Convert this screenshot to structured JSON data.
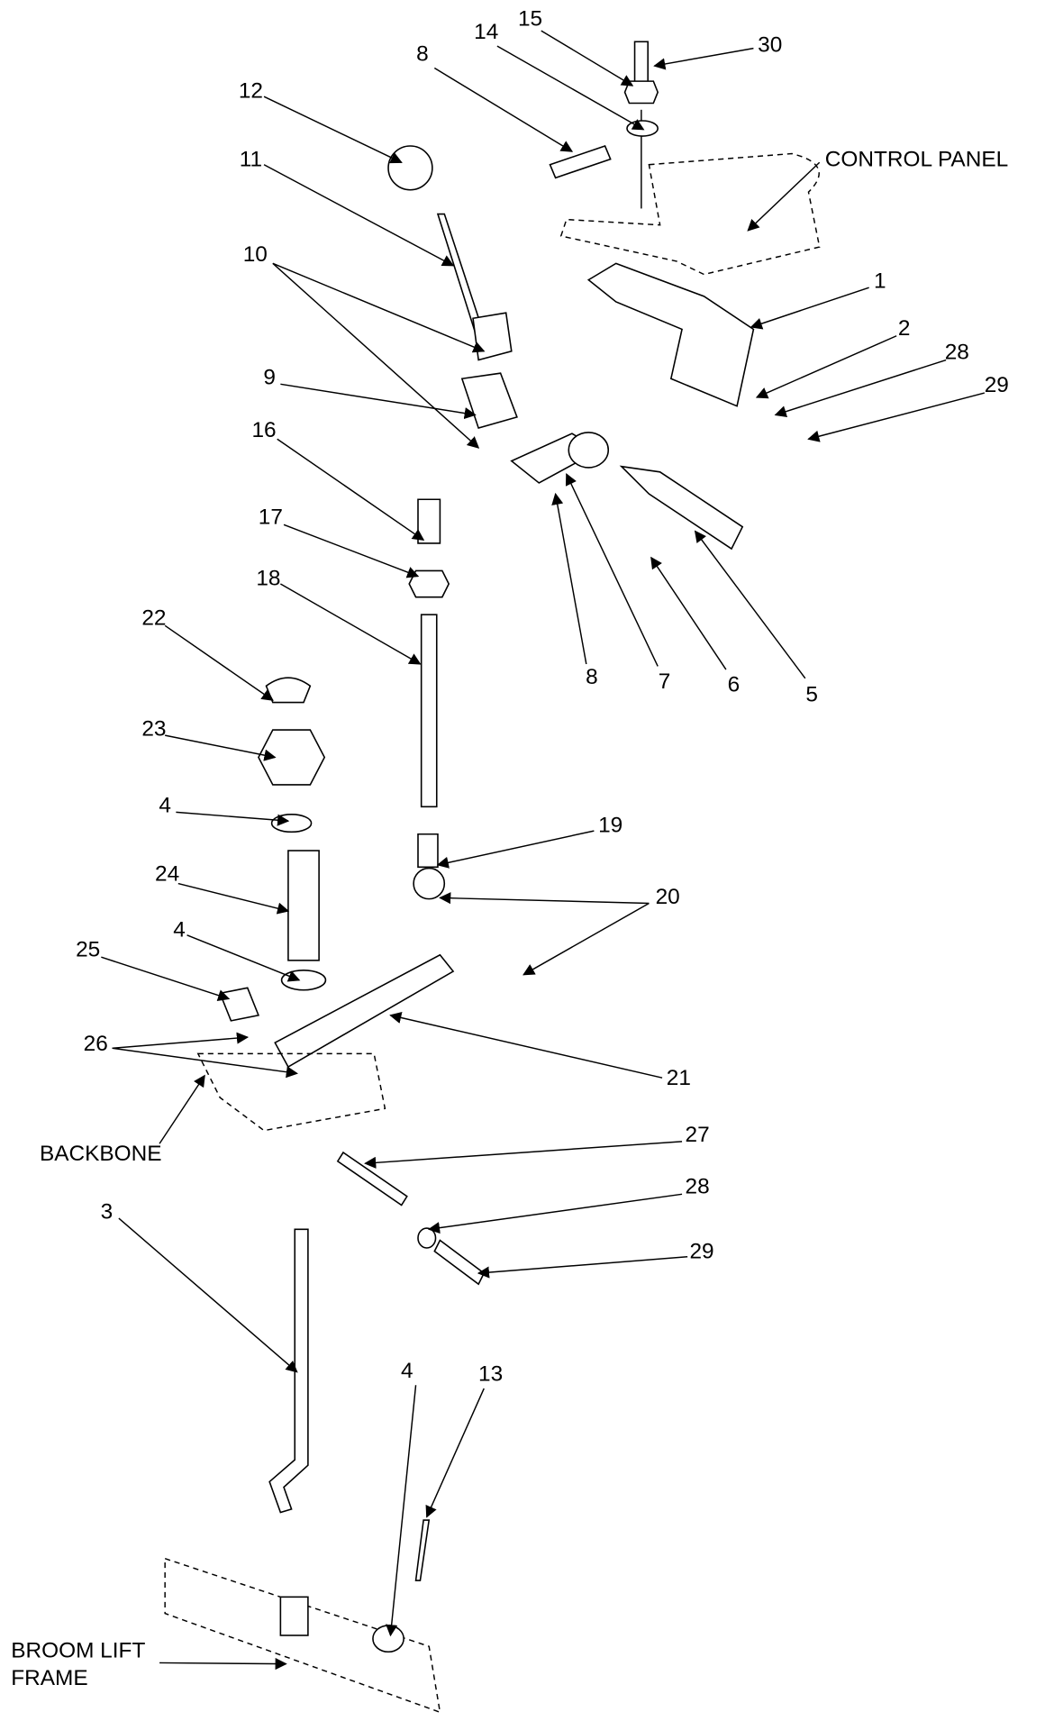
{
  "labels": [
    "15",
    "14",
    "30",
    "8",
    "12",
    "CONTROL PANEL",
    "11",
    "10",
    "1",
    "2",
    "28",
    "9",
    "29",
    "16",
    "17",
    "18",
    "8",
    "7",
    "6",
    "5",
    "22",
    "23",
    "4",
    "19",
    "24",
    "20",
    "4",
    "25",
    "26",
    "21",
    "BACKBONE",
    "27",
    "28",
    "3",
    "29",
    "4",
    "13",
    "BROOM LIFT",
    "FRAME"
  ]
}
